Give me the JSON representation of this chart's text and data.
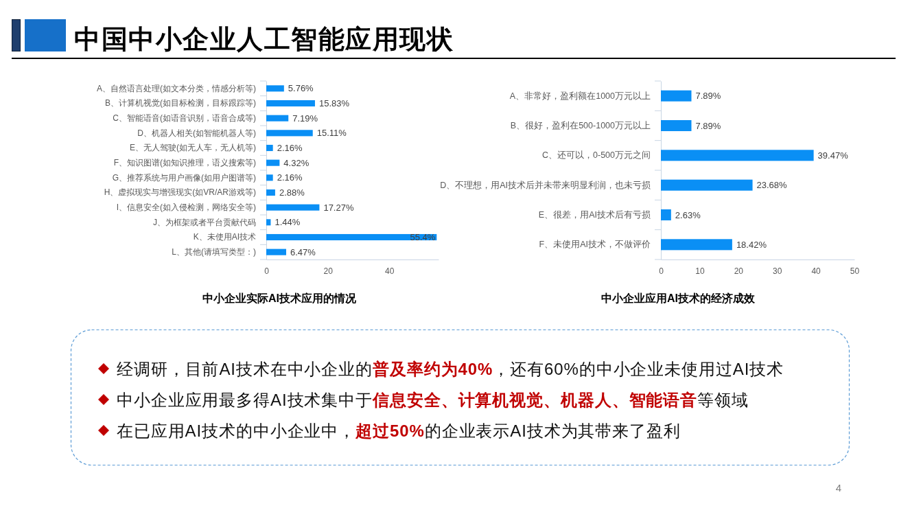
{
  "chart_data": [
    {
      "type": "bar",
      "orientation": "horizontal",
      "title": "中小企业实际AI技术应用的情况",
      "categories": [
        "A、自然语言处理(如文本分类，情感分析等)",
        "B、计算机视觉(如目标检测，目标跟踪等)",
        "C、智能语音(如语音识别，语音合成等)",
        "D、机器人相关(如智能机器人等)",
        "E、无人驾驶(如无人车，无人机等)",
        "F、知识图谱(如知识推理，语义搜索等)",
        "G、推荐系统与用户画像(如用户图谱等)",
        "H、虚拟现实与增强现实(如VR/AR游戏等)",
        "I、信息安全(如入侵检测，网络安全等)",
        "J、为框架或者平台贡献代码",
        "K、未使用AI技术",
        "L、其他(请填写类型：)"
      ],
      "values": [
        5.76,
        15.83,
        7.19,
        15.11,
        2.16,
        4.32,
        2.16,
        2.88,
        17.27,
        1.44,
        55.4,
        6.47
      ],
      "value_labels": [
        "5.76%",
        "15.83%",
        "7.19%",
        "15.11%",
        "2.16%",
        "4.32%",
        "2.16%",
        "2.88%",
        "17.27%",
        "1.44%",
        "55.4%",
        "6.47%"
      ],
      "color": "#0a8ff5",
      "xlim": [
        0,
        56
      ],
      "xticks": [
        0,
        20,
        40
      ]
    },
    {
      "type": "bar",
      "orientation": "horizontal",
      "title": "中小企业应用AI技术的经济成效",
      "categories": [
        "A、非常好，盈利额在1000万元以上",
        "B、很好，盈利在500-1000万元以上",
        "C、还可以，0-500万元之间",
        "D、不理想，用AI技术后并未带来明显利润，也未亏损",
        "E、很差，用AI技术后有亏损",
        "F、未使用AI技术，不做评价"
      ],
      "values": [
        7.89,
        7.89,
        39.47,
        23.68,
        2.63,
        18.42
      ],
      "value_labels": [
        "7.89%",
        "7.89%",
        "39.47%",
        "23.68%",
        "2.63%",
        "18.42%"
      ],
      "color": "#0a8ff5",
      "xlim": [
        0,
        50
      ],
      "xticks": [
        0,
        10,
        20,
        30,
        40,
        50
      ]
    },
    {
      "type": "other",
      "title": "中国中小企业人工智能应用现状",
      "annotations": [
        "经调研，目前AI技术在中小企业的",
        "普及率约为40%",
        "，还有60%的中小企业未使用过AI技术",
        "中小企业应用最多得AI技术集中于",
        "信息安全、计算机视觉、机器人、智能语音",
        "等领域",
        "在已应用AI技术的中小企业中，",
        "超过50%",
        "的企业表示AI技术为其带来了盈利",
        "4"
      ]
    }
  ]
}
